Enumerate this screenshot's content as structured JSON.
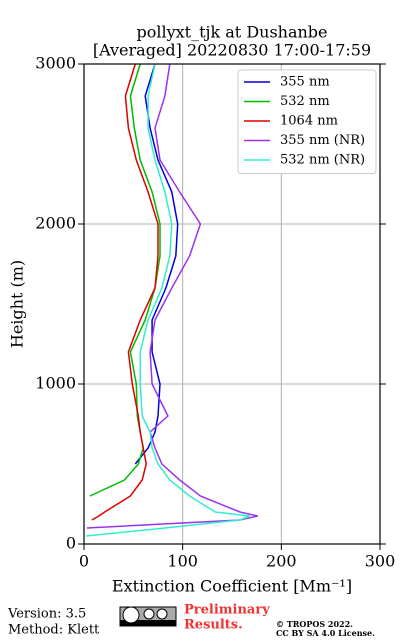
{
  "chart_data": {
    "type": "line",
    "title": [
      "pollyxt_tjk at Dushanbe",
      "[Averaged] 20220830 17:00-17:59"
    ],
    "x_label": "Extinction Coefficient [Mm⁻¹]",
    "y_label": "Height (m)",
    "y": [
      50,
      100,
      150,
      175,
      200,
      300,
      400,
      500,
      600,
      700,
      800,
      1000,
      1200,
      1400,
      1600,
      1800,
      2000,
      2200,
      2400,
      2600,
      2800,
      3000
    ],
    "series": [
      {
        "name": "355 nm",
        "color": "#0000dd",
        "values": [
          null,
          null,
          null,
          null,
          null,
          null,
          null,
          52,
          65,
          72,
          75,
          77,
          69,
          69,
          83,
          93,
          95,
          89,
          75,
          67,
          62,
          72
        ]
      },
      {
        "name": "532 nm",
        "color": "#00bb00",
        "values": [
          null,
          null,
          null,
          null,
          null,
          6,
          41,
          55,
          60,
          57,
          54,
          53,
          47,
          62,
          72,
          77,
          77,
          69,
          57,
          51,
          47,
          57
        ]
      },
      {
        "name": "1064 nm",
        "color": "#dd0000",
        "values": [
          null,
          null,
          8,
          15,
          21,
          47,
          59,
          63,
          60,
          57,
          55,
          49,
          45,
          57,
          72,
          75,
          75,
          65,
          53,
          45,
          42,
          52
        ]
      },
      {
        "name": "355 nm (NR)",
        "color": "#9933ee",
        "values": [
          null,
          3,
          158,
          176,
          158,
          118,
          97,
          79,
          72,
          67,
          85,
          69,
          67,
          72,
          89,
          107,
          118,
          97,
          77,
          72,
          82,
          87
        ]
      },
      {
        "name": "532 nm (NR)",
        "color": "#33eecc",
        "values": [
          2,
          82,
          158,
          168,
          133,
          107,
          87,
          75,
          69,
          67,
          59,
          57,
          57,
          65,
          79,
          87,
          89,
          82,
          72,
          65,
          65,
          72
        ]
      }
    ],
    "xlim": [
      0,
      300
    ],
    "xticks": [
      0,
      100,
      200,
      300
    ],
    "ylim": [
      0,
      3000
    ],
    "yticks": [
      0,
      1000,
      2000,
      3000
    ],
    "grid": true,
    "legend": "upper right"
  },
  "footer": {
    "version": "Version: 3.5",
    "method": "Method: Klett",
    "preliminary": [
      "Preliminary",
      "Results."
    ],
    "copyright": [
      "© TROPOS 2022.",
      "CC BY SA 4.0 License."
    ]
  }
}
